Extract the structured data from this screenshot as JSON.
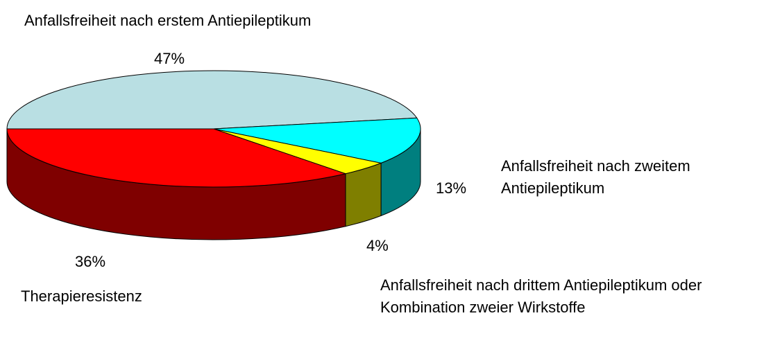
{
  "chart_data": {
    "type": "pie3d",
    "title": "Anfallsfreiheit nach erstem Antiepileptikum",
    "categories": [
      "Anfallsfreiheit nach erstem Antiepileptikum",
      "Anfallsfreiheit nach zweitem Antiepileptikum",
      "Anfallsfreiheit nach drittem Antiepileptikum oder Kombination zweier Wirkstoffe",
      "Therapieresistenz"
    ],
    "values": [
      47,
      13,
      4,
      36
    ],
    "value_labels": [
      "47%",
      "13%",
      "4%",
      "36%"
    ],
    "colors": [
      "#b9dfe3",
      "#00ffff",
      "#ffff00",
      "#ff0000"
    ]
  }
}
